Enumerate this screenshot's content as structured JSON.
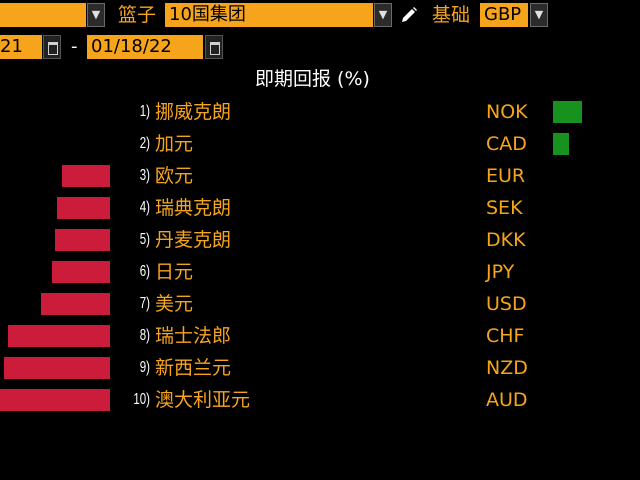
{
  "toolbar": {
    "left_field_value": "",
    "basket_label": "篮子",
    "basket_value": "10国集团",
    "base_label": "基础",
    "base_value": "GBP",
    "dropdown_glyph": "▼",
    "date_start": "21",
    "date_separator": "-",
    "date_end": "01/18/22"
  },
  "chart_title": "即期回报 (%)",
  "colors": {
    "accent": "#f7a41d",
    "negative": "#cc1c3c",
    "positive": "#18921e"
  },
  "rows": [
    {
      "rank": "1)",
      "name": "挪威克朗",
      "code": "NOK"
    },
    {
      "rank": "2)",
      "name": "加元",
      "code": "CAD"
    },
    {
      "rank": "3)",
      "name": "欧元",
      "code": "EUR"
    },
    {
      "rank": "4)",
      "name": "瑞典克朗",
      "code": "SEK"
    },
    {
      "rank": "5)",
      "name": "丹麦克朗",
      "code": "DKK"
    },
    {
      "rank": "6)",
      "name": "日元",
      "code": "JPY"
    },
    {
      "rank": "7)",
      "name": "美元",
      "code": "USD"
    },
    {
      "rank": "8)",
      "name": "瑞士法郎",
      "code": "CHF"
    },
    {
      "rank": "9)",
      "name": "新西兰元",
      "code": "NZD"
    },
    {
      "rank": "10)",
      "name": "澳大利亚元",
      "code": "AUD"
    }
  ],
  "chart_data": {
    "type": "bar",
    "title": "即期回报 (%)",
    "categories": [
      "NOK",
      "CAD",
      "EUR",
      "SEK",
      "DKK",
      "JPY",
      "USD",
      "CHF",
      "NZD",
      "AUD"
    ],
    "values": [
      0.3,
      0.17,
      -0.56,
      -0.62,
      -0.65,
      -0.68,
      -0.81,
      -1.2,
      -1.25,
      -1.3
    ],
    "xlabel": "",
    "ylabel": "",
    "grid": false,
    "legend": "none"
  }
}
